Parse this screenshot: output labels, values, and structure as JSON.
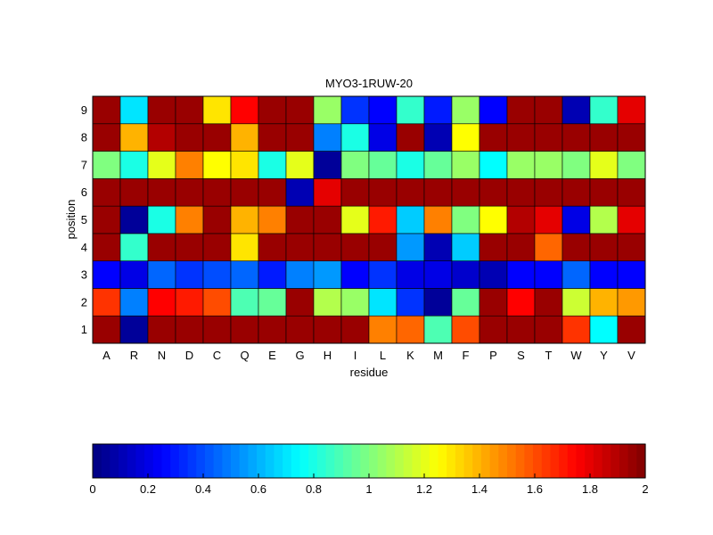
{
  "chart_data": {
    "type": "heatmap",
    "title": "MYO3-1RUW-20",
    "xlabel": "residue",
    "ylabel": "position",
    "x_categories": [
      "A",
      "R",
      "N",
      "D",
      "C",
      "Q",
      "E",
      "G",
      "H",
      "I",
      "L",
      "K",
      "M",
      "F",
      "P",
      "S",
      "T",
      "W",
      "Y",
      "V"
    ],
    "y_categories": [
      "1",
      "2",
      "3",
      "4",
      "5",
      "6",
      "7",
      "8",
      "9"
    ],
    "values": [
      [
        1.95,
        0.05,
        1.95,
        1.95,
        1.95,
        1.95,
        1.95,
        1.95,
        1.95,
        1.95,
        1.5,
        1.55,
        0.9,
        1.6,
        1.95,
        1.95,
        1.95,
        1.65,
        0.75,
        1.95
      ],
      [
        1.65,
        0.5,
        1.75,
        1.7,
        1.6,
        0.9,
        0.95,
        1.95,
        1.1,
        1.05,
        0.7,
        0.35,
        0.05,
        0.95,
        1.95,
        1.75,
        1.95,
        1.15,
        1.4,
        1.45
      ],
      [
        0.25,
        0.2,
        0.45,
        0.35,
        0.4,
        0.45,
        0.3,
        0.5,
        0.55,
        0.25,
        0.35,
        0.2,
        0.2,
        0.15,
        0.1,
        0.25,
        0.25,
        0.45,
        0.25,
        0.25
      ],
      [
        1.95,
        0.85,
        1.95,
        1.95,
        1.95,
        1.3,
        1.95,
        1.95,
        1.95,
        1.95,
        1.95,
        0.55,
        0.1,
        0.65,
        1.95,
        1.95,
        1.55,
        1.95,
        1.95,
        1.95
      ],
      [
        1.95,
        0.05,
        0.8,
        1.5,
        1.95,
        1.4,
        1.5,
        1.95,
        1.95,
        1.2,
        1.7,
        0.65,
        1.5,
        1.0,
        1.25,
        1.9,
        1.8,
        0.2,
        1.1,
        1.8
      ],
      [
        1.95,
        1.95,
        1.95,
        1.95,
        1.95,
        1.95,
        1.95,
        0.1,
        1.8,
        1.95,
        1.95,
        1.95,
        1.95,
        1.95,
        1.95,
        1.95,
        1.95,
        1.95,
        1.95,
        1.95
      ],
      [
        1.0,
        0.8,
        1.2,
        1.5,
        1.25,
        1.3,
        0.8,
        1.2,
        0.05,
        1.0,
        0.95,
        0.8,
        0.95,
        1.05,
        0.75,
        1.05,
        1.05,
        1.0,
        1.2,
        1.0
      ],
      [
        1.95,
        1.4,
        1.9,
        1.95,
        1.95,
        1.4,
        1.95,
        1.95,
        0.5,
        0.8,
        0.2,
        1.95,
        0.1,
        1.25,
        1.95,
        1.95,
        1.95,
        1.95,
        1.95,
        1.95
      ],
      [
        1.95,
        0.7,
        1.95,
        1.95,
        1.3,
        1.75,
        1.95,
        1.95,
        1.05,
        0.35,
        0.25,
        0.85,
        0.3,
        1.05,
        0.25,
        1.95,
        1.95,
        0.1,
        0.85,
        1.8
      ]
    ],
    "colorbar": {
      "range": [
        0,
        2
      ],
      "ticks": [
        "0",
        "0.2",
        "0.4",
        "0.6",
        "0.8",
        "1",
        "1.2",
        "1.4",
        "1.6",
        "1.8",
        "2"
      ],
      "colormap": "jet"
    }
  }
}
